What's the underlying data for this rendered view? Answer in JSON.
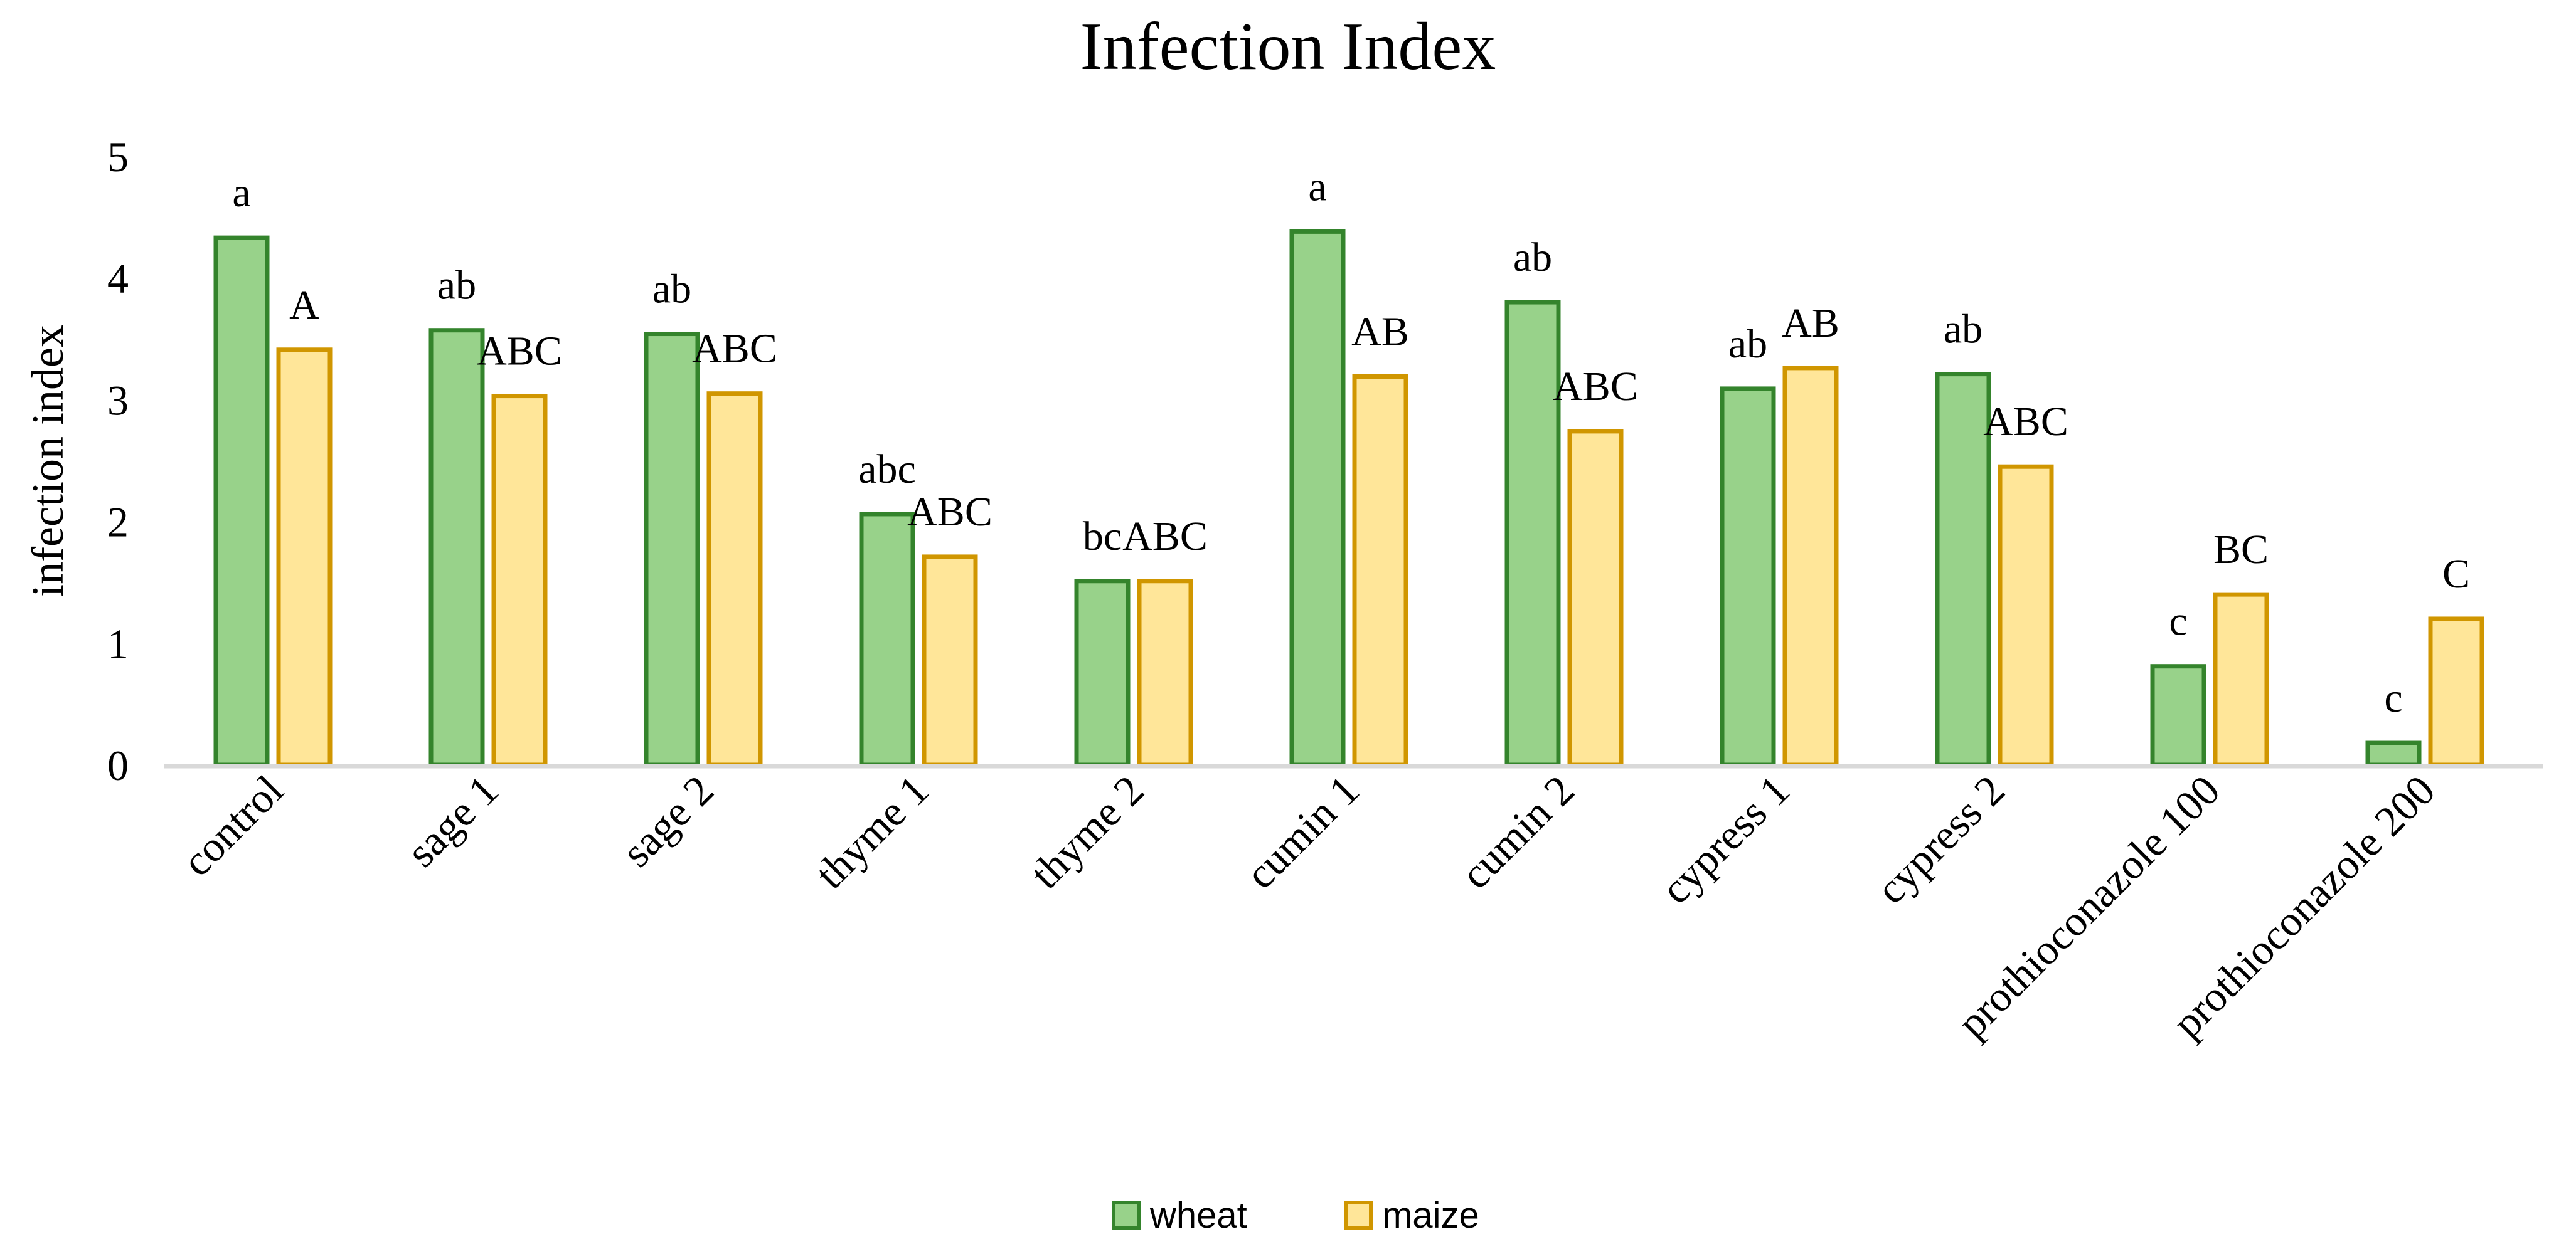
{
  "chart_data": {
    "type": "bar",
    "title": "Infection Index",
    "xlabel": "",
    "ylabel": "infection index",
    "ylim": [
      0,
      5
    ],
    "yticks": [
      "0",
      "1",
      "2",
      "3",
      "4",
      "5"
    ],
    "grid": false,
    "legend_position": "bottom",
    "categories": [
      "control",
      "sage 1",
      "sage 2",
      "thyme 1",
      "thyme 2",
      "cumin 1",
      "cumin 2",
      "cypress 1",
      "cypress 2",
      "prothioconazole 100",
      "prothioconazole 200"
    ],
    "series": [
      {
        "name": "wheat",
        "fill": "#98D28A",
        "stroke": "#34842C",
        "values": [
          4.33,
          3.57,
          3.54,
          2.06,
          1.51,
          4.38,
          3.8,
          3.09,
          3.21,
          0.81,
          0.18
        ],
        "labels": [
          "a",
          "ab",
          "ab",
          "abc",
          "bc",
          "a",
          "ab",
          "ab",
          "ab",
          "c",
          "c"
        ]
      },
      {
        "name": "maize",
        "fill": "#FFE699",
        "stroke": "#D09600",
        "values": [
          3.41,
          3.03,
          3.05,
          1.71,
          1.51,
          3.19,
          2.74,
          3.26,
          2.45,
          1.4,
          1.2
        ],
        "labels": [
          "A",
          "ABC",
          "ABC",
          "ABC",
          "ABC",
          "AB",
          "ABC",
          "AB",
          "ABC",
          "BC",
          "C"
        ]
      }
    ]
  }
}
